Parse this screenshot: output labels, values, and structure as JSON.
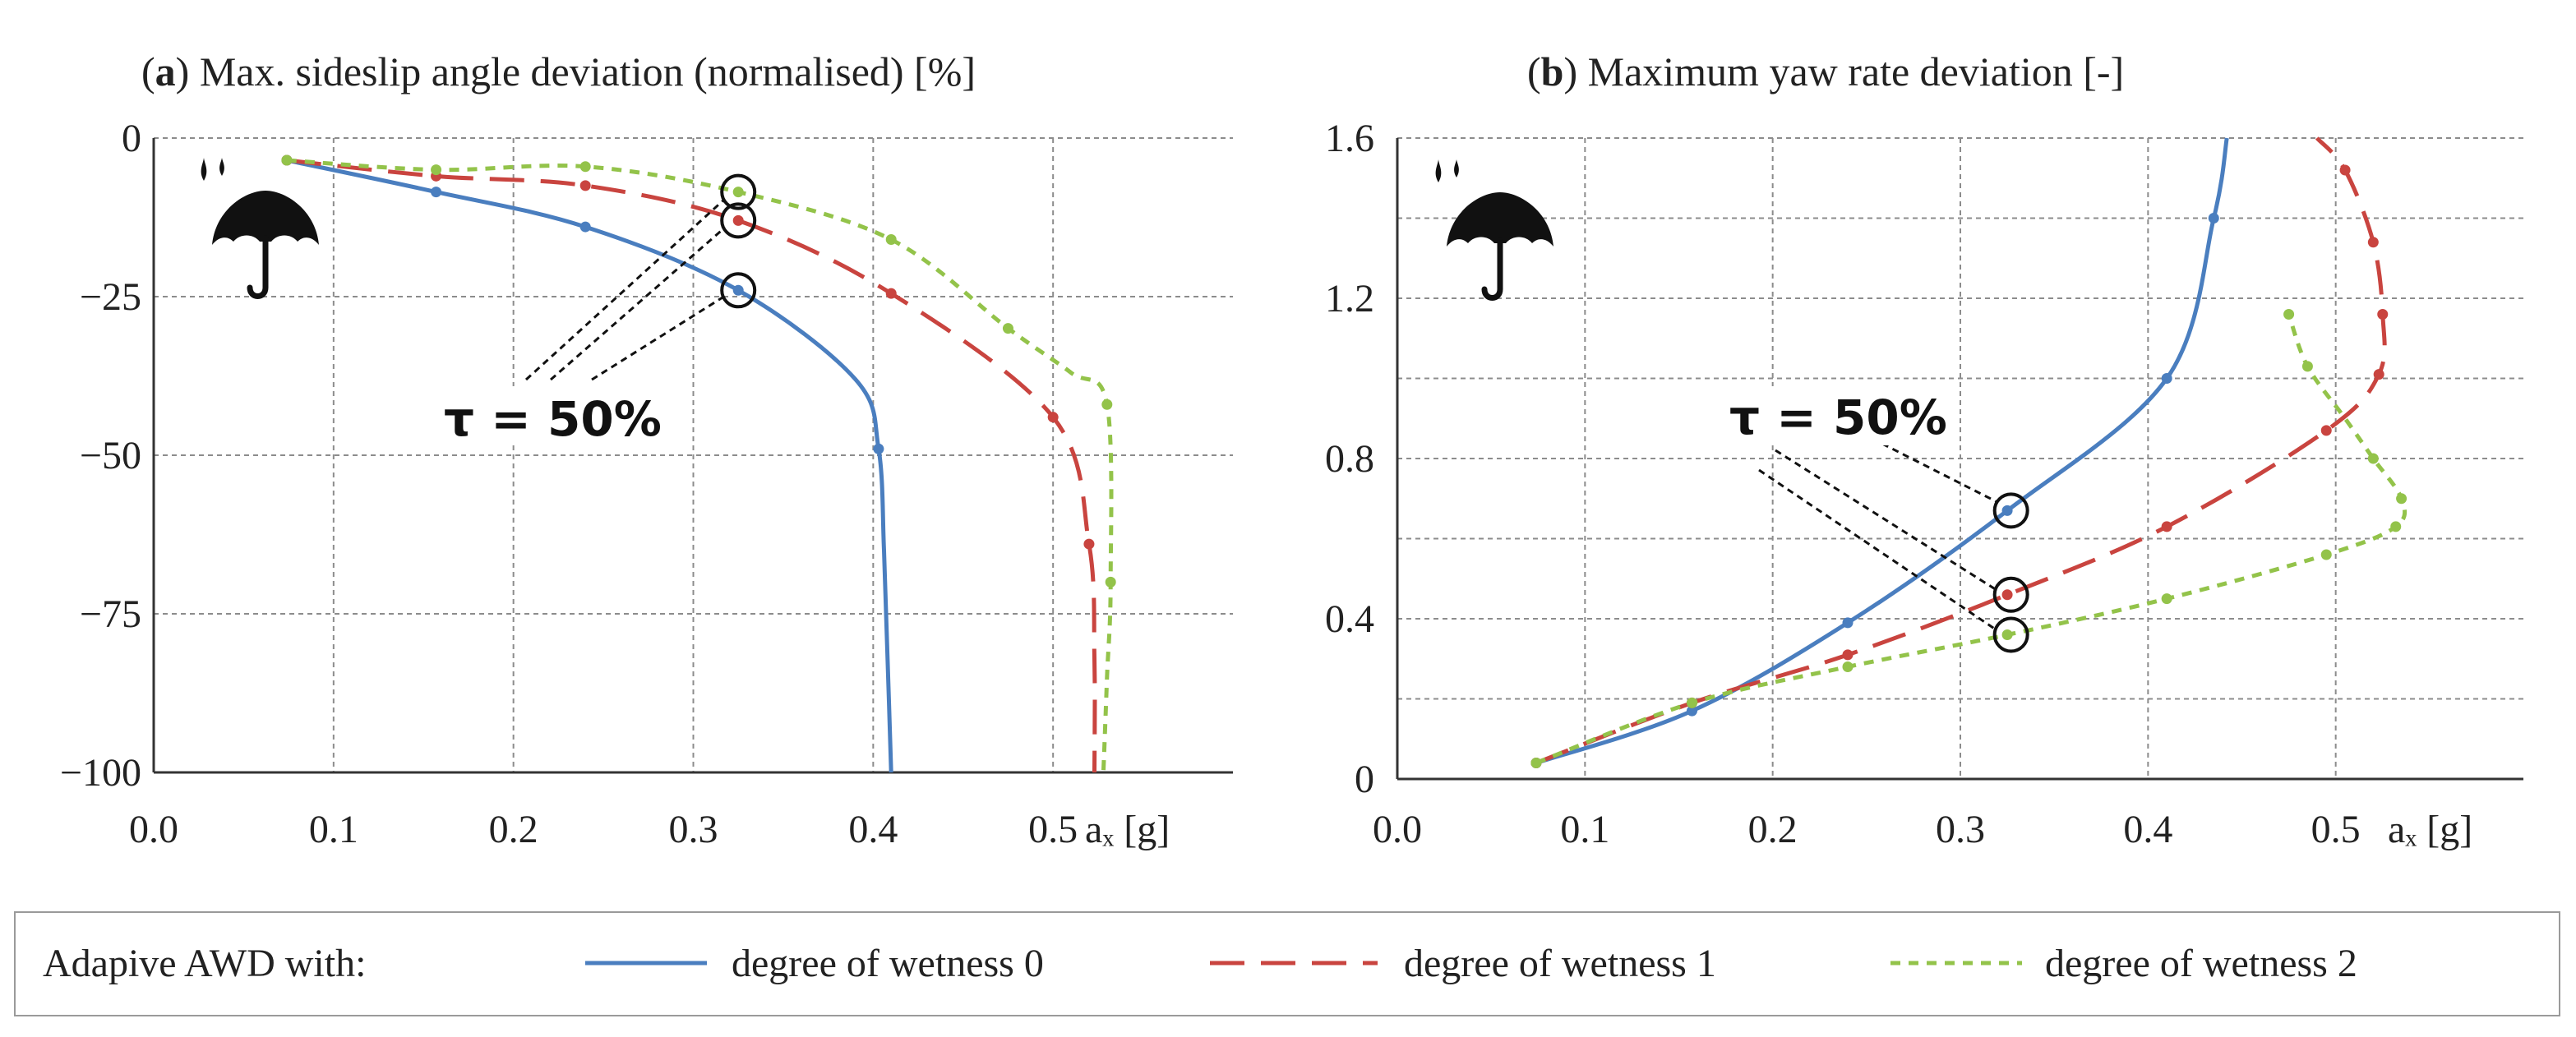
{
  "chart_data": [
    {
      "id": "a",
      "type": "line",
      "title_letter": "a",
      "title_text": " Max. sideslip angle deviation (normalised) [%]",
      "xlabel": "aₓ [g]",
      "ylabel": "",
      "xlim": [
        0.0,
        0.6
      ],
      "ylim": [
        -100,
        0
      ],
      "x_ticks": [
        "0.0",
        "0.1",
        "0.2",
        "0.3",
        "0.4",
        "0.5"
      ],
      "y_ticks": [
        "0",
        "−25",
        "−50",
        "−75",
        "−100"
      ],
      "annotation": "τ = 50%",
      "series": [
        {
          "name": "degree of wetness 0",
          "x": [
            0.074,
            0.157,
            0.24,
            0.325,
            0.39,
            0.403,
            0.406,
            0.408,
            0.41
          ],
          "y": [
            -3.5,
            -8.5,
            -14,
            -24,
            -38,
            -49,
            -65,
            -82,
            -100
          ],
          "markers": [
            0,
            1,
            2,
            3,
            5
          ]
        },
        {
          "name": "degree of wetness 1",
          "x": [
            0.074,
            0.157,
            0.24,
            0.325,
            0.41,
            0.5,
            0.52,
            0.523,
            0.523
          ],
          "y": [
            -3.5,
            -6,
            -7.5,
            -13,
            -24.5,
            -44,
            -64,
            -82,
            -100
          ],
          "markers": [
            0,
            1,
            2,
            3,
            4,
            5,
            6
          ]
        },
        {
          "name": "degree of wetness 2",
          "x": [
            0.074,
            0.157,
            0.24,
            0.325,
            0.41,
            0.475,
            0.51,
            0.53,
            0.532,
            0.53,
            0.528
          ],
          "y": [
            -3.5,
            -5,
            -4.5,
            -8.5,
            -16,
            -30,
            -37,
            -42,
            -70,
            -85,
            -100
          ],
          "markers": [
            0,
            1,
            2,
            3,
            4,
            5,
            7,
            8
          ]
        }
      ],
      "circles": [
        {
          "x": 0.325,
          "y": -8.5
        },
        {
          "x": 0.325,
          "y": -13
        },
        {
          "x": 0.325,
          "y": -24
        }
      ]
    },
    {
      "id": "b",
      "type": "line",
      "title_letter": "b",
      "title_text": " Maximum yaw rate deviation [-]",
      "xlabel": "aₓ [g]",
      "ylabel": "",
      "xlim": [
        0.0,
        0.6
      ],
      "ylim": [
        0,
        1.6
      ],
      "x_ticks": [
        "0.0",
        "0.1",
        "0.2",
        "0.3",
        "0.4",
        "0.5"
      ],
      "y_ticks": [
        "0",
        "0.4",
        "0.8",
        "1.2",
        "1.6"
      ],
      "annotation": "τ = 50%",
      "series": [
        {
          "name": "degree of wetness 0",
          "x": [
            0.074,
            0.157,
            0.24,
            0.325,
            0.41,
            0.435,
            0.442
          ],
          "y": [
            0.04,
            0.17,
            0.39,
            0.67,
            1.0,
            1.4,
            1.6
          ],
          "markers": [
            0,
            1,
            2,
            3,
            4,
            5
          ]
        },
        {
          "name": "degree of wetness 1",
          "x": [
            0.074,
            0.157,
            0.24,
            0.325,
            0.41,
            0.495,
            0.523,
            0.525,
            0.52,
            0.505,
            0.49
          ],
          "y": [
            0.04,
            0.19,
            0.31,
            0.46,
            0.63,
            0.87,
            1.01,
            1.16,
            1.34,
            1.52,
            1.6
          ],
          "markers": [
            0,
            1,
            2,
            3,
            4,
            5,
            6,
            7,
            8,
            9
          ]
        },
        {
          "name": "degree of wetness 2",
          "x": [
            0.074,
            0.157,
            0.24,
            0.325,
            0.41,
            0.495,
            0.532,
            0.535,
            0.52,
            0.505,
            0.485,
            0.475
          ],
          "y": [
            0.04,
            0.19,
            0.28,
            0.36,
            0.45,
            0.56,
            0.63,
            0.7,
            0.8,
            0.9,
            1.03,
            1.16
          ],
          "markers": [
            0,
            1,
            2,
            3,
            4,
            5,
            6,
            7,
            8,
            10,
            11
          ]
        }
      ],
      "circles": [
        {
          "x": 0.327,
          "y": 0.67
        },
        {
          "x": 0.327,
          "y": 0.46
        },
        {
          "x": 0.327,
          "y": 0.36
        }
      ]
    }
  ],
  "legend": {
    "prefix": "Adapive AWD with:",
    "items": [
      "degree of wetness 0",
      "degree of wetness 1",
      "degree of wetness 2"
    ]
  },
  "colors": {
    "wetness0": "#4a7ebf",
    "wetness1": "#c9443f",
    "wetness2": "#93c34a",
    "grid": "#8c8c8c",
    "axis": "#333333",
    "icon": "#111111"
  },
  "icons": {
    "panel_a": "umbrella-rain-icon",
    "panel_b": "umbrella-rain-icon"
  }
}
